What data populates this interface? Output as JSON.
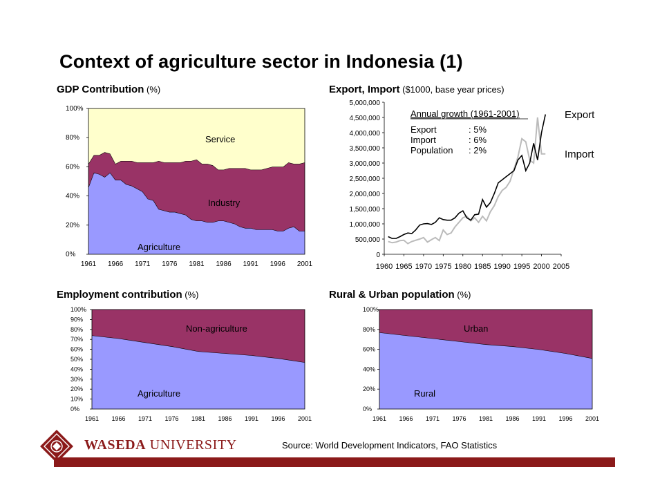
{
  "slide": {
    "title": "Context of agriculture sector in Indonesia (1)",
    "source": "Source: World Development Indicators, FAO Statistics",
    "logo": {
      "name_bold": "WASEDA",
      "name_rest": " UNIVERSITY"
    }
  },
  "colors": {
    "agriculture": "#9999ff",
    "industry": "#993366",
    "service": "#ffffcc",
    "footer": "#8b1a1a"
  },
  "chart_data": [
    {
      "type": "area",
      "title_bold": "GDP Contribution",
      "title_unit": " (%)",
      "y_ticks": [
        "0%",
        "20%",
        "40%",
        "60%",
        "80%",
        "100%"
      ],
      "x_ticks": [
        "1961",
        "1966",
        "1971",
        "1976",
        "1981",
        "1986",
        "1991",
        "1996",
        "2001"
      ],
      "ylim": [
        0,
        100
      ],
      "x": [
        1961,
        1962,
        1963,
        1964,
        1965,
        1966,
        1967,
        1968,
        1969,
        1970,
        1971,
        1972,
        1973,
        1974,
        1975,
        1976,
        1977,
        1978,
        1979,
        1980,
        1981,
        1982,
        1983,
        1984,
        1985,
        1986,
        1987,
        1988,
        1989,
        1990,
        1991,
        1992,
        1993,
        1994,
        1995,
        1996,
        1997,
        1998,
        1999,
        2000,
        2001
      ],
      "series": [
        {
          "name": "Agriculture",
          "values": [
            46,
            56,
            55,
            53,
            56,
            51,
            51,
            48,
            47,
            45,
            43,
            38,
            37,
            31,
            30,
            29,
            29,
            28,
            27,
            24,
            23,
            23,
            22,
            22,
            23,
            23,
            22,
            21,
            19,
            18,
            18,
            17,
            17,
            17,
            17,
            16,
            16,
            18,
            19,
            16,
            16
          ]
        },
        {
          "name": "Industry",
          "values": [
            16,
            12,
            13,
            17,
            13,
            11,
            13,
            16,
            17,
            18,
            20,
            25,
            26,
            33,
            33,
            34,
            34,
            35,
            37,
            40,
            42,
            39,
            40,
            39,
            35,
            35,
            37,
            38,
            40,
            41,
            40,
            41,
            41,
            42,
            43,
            44,
            44,
            45,
            43,
            46,
            47
          ]
        },
        {
          "name": "Service",
          "values": [
            38,
            32,
            32,
            30,
            31,
            38,
            36,
            36,
            36,
            37,
            37,
            37,
            37,
            36,
            37,
            37,
            37,
            37,
            36,
            36,
            35,
            38,
            38,
            39,
            42,
            42,
            41,
            41,
            41,
            41,
            42,
            42,
            42,
            41,
            40,
            40,
            40,
            37,
            38,
            38,
            37
          ]
        }
      ]
    },
    {
      "type": "line",
      "title_bold": "Export, Import",
      "title_unit": " ($1000, base year prices)",
      "y_ticks": [
        "0",
        "500,000",
        "1,000,000",
        "1,500,000",
        "2,000,000",
        "2,500,000",
        "3,000,000",
        "3,500,000",
        "4,000,000",
        "4,500,000",
        "5,000,000"
      ],
      "x_ticks": [
        "1960",
        "1965",
        "1970",
        "1975",
        "1980",
        "1985",
        "1990",
        "1995",
        "2000",
        "2005"
      ],
      "xlim": [
        1960,
        2005
      ],
      "ylim": [
        0,
        5000000
      ],
      "annotation": {
        "heading": "Annual growth (1961-2001)",
        "rows": [
          {
            "label": "Export",
            "value": ": 5%"
          },
          {
            "label": "Import",
            "value": ": 6%"
          },
          {
            "label": "Population",
            "value": ": 2%"
          }
        ]
      },
      "series": [
        {
          "name": "Export",
          "color": "#000000",
          "x": [
            1961,
            1962,
            1963,
            1964,
            1965,
            1966,
            1967,
            1968,
            1969,
            1970,
            1971,
            1972,
            1973,
            1974,
            1975,
            1976,
            1977,
            1978,
            1979,
            1980,
            1981,
            1982,
            1983,
            1984,
            1985,
            1986,
            1987,
            1988,
            1989,
            1990,
            1991,
            1992,
            1993,
            1994,
            1995,
            1996,
            1997,
            1998,
            1999,
            2000,
            2001
          ],
          "values": [
            580000,
            520000,
            520000,
            580000,
            650000,
            700000,
            680000,
            800000,
            960000,
            1000000,
            1010000,
            980000,
            1050000,
            1200000,
            1140000,
            1120000,
            1120000,
            1200000,
            1350000,
            1430000,
            1200000,
            1120000,
            1300000,
            1320000,
            1800000,
            1550000,
            1700000,
            2000000,
            2350000,
            2450000,
            2550000,
            2650000,
            2750000,
            3100000,
            3250000,
            2750000,
            3000000,
            3650000,
            3100000,
            4000000,
            4600000
          ]
        },
        {
          "name": "Import",
          "color": "#bbbbbb",
          "x": [
            1961,
            1962,
            1963,
            1964,
            1965,
            1966,
            1967,
            1968,
            1969,
            1970,
            1971,
            1972,
            1973,
            1974,
            1975,
            1976,
            1977,
            1978,
            1979,
            1980,
            1981,
            1982,
            1983,
            1984,
            1985,
            1986,
            1987,
            1988,
            1989,
            1990,
            1991,
            1992,
            1993,
            1994,
            1995,
            1996,
            1997,
            1998,
            1999,
            2000,
            2001
          ],
          "values": [
            420000,
            380000,
            400000,
            450000,
            460000,
            350000,
            420000,
            460000,
            500000,
            550000,
            400000,
            480000,
            550000,
            450000,
            800000,
            650000,
            700000,
            900000,
            1050000,
            1200000,
            1250000,
            1100000,
            1200000,
            1050000,
            1250000,
            1100000,
            1400000,
            1600000,
            1900000,
            2100000,
            2200000,
            2400000,
            2800000,
            3200000,
            3800000,
            3700000,
            3100000,
            3000000,
            4500000,
            3300000,
            3300000
          ]
        }
      ]
    },
    {
      "type": "area",
      "title_bold": "Employment contribution",
      "title_unit": " (%)",
      "y_ticks": [
        "0%",
        "10%",
        "20%",
        "30%",
        "40%",
        "50%",
        "60%",
        "70%",
        "80%",
        "90%",
        "100%"
      ],
      "x_ticks": [
        "1961",
        "1966",
        "1971",
        "1976",
        "1981",
        "1986",
        "1991",
        "1996",
        "2001"
      ],
      "ylim": [
        0,
        100
      ],
      "x": [
        1961,
        1966,
        1971,
        1976,
        1981,
        1986,
        1991,
        1996,
        2001
      ],
      "series": [
        {
          "name": "Agriculture",
          "values": [
            74,
            71,
            67,
            63,
            58,
            56,
            54,
            51,
            47
          ]
        },
        {
          "name": "Non-agriculture",
          "values": [
            26,
            29,
            33,
            37,
            42,
            44,
            46,
            49,
            53
          ]
        }
      ]
    },
    {
      "type": "area",
      "title_bold": "Rural & Urban population",
      "title_unit": " (%)",
      "y_ticks": [
        "0%",
        "20%",
        "40%",
        "60%",
        "80%",
        "100%"
      ],
      "x_ticks": [
        "1961",
        "1966",
        "1971",
        "1976",
        "1981",
        "1986",
        "1991",
        "1996",
        "2001"
      ],
      "ylim": [
        0,
        100
      ],
      "x": [
        1961,
        1966,
        1971,
        1976,
        1981,
        1986,
        1991,
        1996,
        2001
      ],
      "series": [
        {
          "name": "Rural",
          "values": [
            77,
            74,
            71,
            68,
            65,
            63,
            60,
            56,
            51
          ]
        },
        {
          "name": "Urban",
          "values": [
            23,
            26,
            29,
            32,
            35,
            37,
            40,
            44,
            49
          ]
        }
      ]
    }
  ]
}
